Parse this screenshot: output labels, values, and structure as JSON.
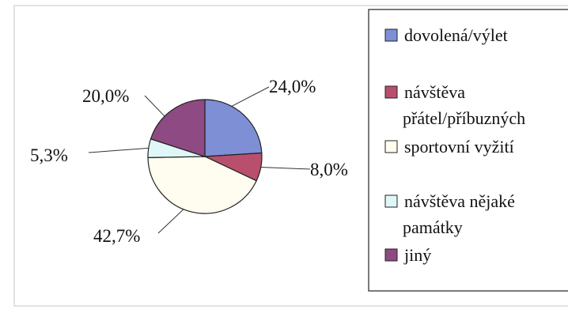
{
  "chart_data": {
    "type": "pie",
    "title": "",
    "categories": [
      "dovolená/výlet",
      "návštěva přátel/příbuzných",
      "sportovní vyžití",
      "návštěva nějaké památky",
      "jiný"
    ],
    "values": [
      24.0,
      8.0,
      42.7,
      5.3,
      20.0
    ],
    "labels": [
      "24,0%",
      "8,0%",
      "42,7%",
      "5,3%",
      "20,0%"
    ],
    "colors": [
      "#7f8fd6",
      "#b8506d",
      "#fffdf0",
      "#dff7f6",
      "#8e4a82"
    ],
    "start_angle_deg": 0,
    "direction": "clockwise",
    "legend": {
      "position": "right",
      "entries": [
        {
          "lines": [
            "dovolená/výlet"
          ]
        },
        {
          "lines": [
            "návštěva",
            "přátel/příbuzných"
          ]
        },
        {
          "lines": [
            "sportovní vyžití"
          ]
        },
        {
          "lines": [
            "návštěva nějaké",
            "památky"
          ]
        },
        {
          "lines": [
            "jiný"
          ]
        }
      ]
    }
  }
}
